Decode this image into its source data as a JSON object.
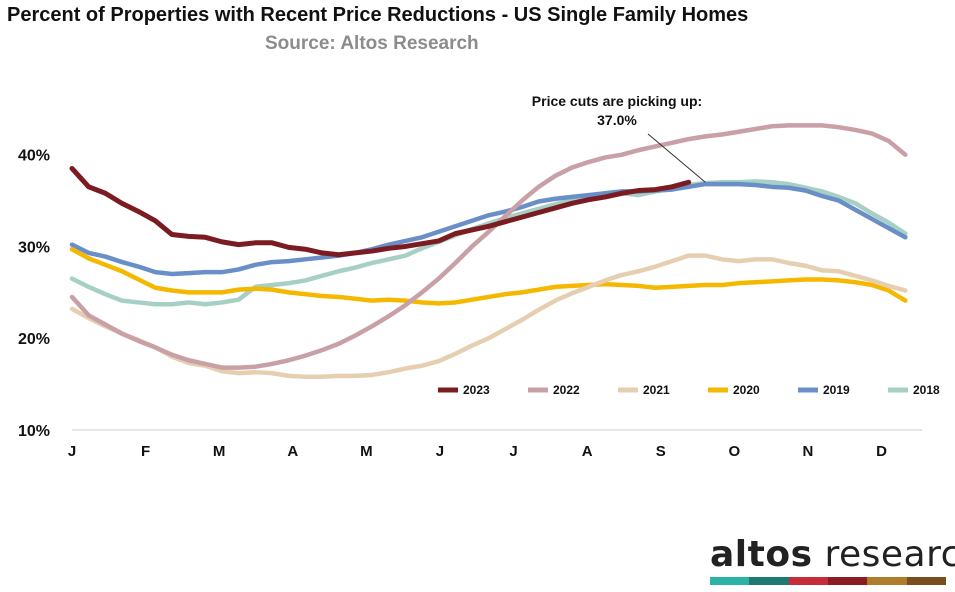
{
  "chart_data": {
    "type": "line",
    "title": "Percent of Properties with Recent Price Reductions - US Single Family Homes",
    "subtitle": "Source: Altos Research",
    "xlabel": "",
    "ylabel": "",
    "x_ticks": [
      "J",
      "F",
      "M",
      "A",
      "M",
      "J",
      "J",
      "A",
      "S",
      "O",
      "N",
      "D"
    ],
    "y_ticks": [
      "10%",
      "20%",
      "30%",
      "40%"
    ],
    "ylim": [
      10,
      44
    ],
    "xlim": [
      0,
      51
    ],
    "x_unit": "week of year",
    "grid": false,
    "legend_position": "bottom-right",
    "annotation": {
      "line1": "Price cuts are picking up:",
      "line2": "37.0%",
      "x": 38,
      "y": 37.0
    },
    "series": [
      {
        "name": "2023",
        "color": "#7b1c22",
        "values": [
          38.5,
          36.5,
          35.8,
          34.7,
          33.8,
          32.8,
          31.3,
          31.1,
          31.0,
          30.5,
          30.2,
          30.4,
          30.4,
          29.9,
          29.7,
          29.3,
          29.1,
          29.3,
          29.5,
          29.8,
          30.0,
          30.3,
          30.6,
          31.4,
          31.8,
          32.2,
          32.7,
          33.2,
          33.7,
          34.2,
          34.7,
          35.1,
          35.4,
          35.8,
          36.1,
          36.2,
          36.5,
          37.0
        ]
      },
      {
        "name": "2022",
        "color": "#c9a0a6",
        "values": [
          24.5,
          22.5,
          21.5,
          20.5,
          19.7,
          19.0,
          18.2,
          17.6,
          17.2,
          16.8,
          16.8,
          16.9,
          17.2,
          17.6,
          18.1,
          18.7,
          19.4,
          20.3,
          21.3,
          22.4,
          23.6,
          25.0,
          26.5,
          28.2,
          30.0,
          31.6,
          33.3,
          35.0,
          36.5,
          37.7,
          38.6,
          39.2,
          39.7,
          40.0,
          40.5,
          40.9,
          41.3,
          41.7,
          42.0,
          42.2,
          42.5,
          42.8,
          43.1,
          43.2,
          43.2,
          43.2,
          43.0,
          42.7,
          42.3,
          41.5,
          40.0
        ]
      },
      {
        "name": "2021",
        "color": "#e6cfb0",
        "values": [
          23.2,
          22.2,
          21.3,
          20.5,
          19.8,
          19.0,
          18.0,
          17.3,
          17.0,
          16.4,
          16.2,
          16.3,
          16.2,
          15.9,
          15.8,
          15.8,
          15.9,
          15.9,
          16.0,
          16.3,
          16.7,
          17.0,
          17.5,
          18.3,
          19.2,
          20.0,
          21.0,
          22.0,
          23.1,
          24.1,
          24.9,
          25.6,
          26.3,
          26.9,
          27.3,
          27.8,
          28.4,
          29.0,
          29.0,
          28.6,
          28.4,
          28.6,
          28.6,
          28.2,
          27.9,
          27.4,
          27.3,
          26.8,
          26.3,
          25.7,
          25.2
        ]
      },
      {
        "name": "2020",
        "color": "#f5b800",
        "values": [
          29.7,
          28.7,
          28.0,
          27.3,
          26.4,
          25.5,
          25.2,
          25.0,
          25.0,
          25.0,
          25.3,
          25.4,
          25.3,
          25.0,
          24.8,
          24.6,
          24.5,
          24.3,
          24.1,
          24.2,
          24.1,
          23.9,
          23.8,
          23.9,
          24.2,
          24.5,
          24.8,
          25.0,
          25.3,
          25.6,
          25.7,
          25.8,
          25.9,
          25.8,
          25.7,
          25.5,
          25.6,
          25.7,
          25.8,
          25.8,
          26.0,
          26.1,
          26.2,
          26.3,
          26.4,
          26.4,
          26.3,
          26.1,
          25.8,
          25.2,
          24.1
        ]
      },
      {
        "name": "2019",
        "color": "#6a8fc8",
        "values": [
          30.2,
          29.3,
          28.9,
          28.3,
          27.8,
          27.2,
          27.0,
          27.1,
          27.2,
          27.2,
          27.5,
          28.0,
          28.3,
          28.4,
          28.6,
          28.8,
          29.0,
          29.3,
          29.7,
          30.2,
          30.6,
          31.0,
          31.6,
          32.2,
          32.8,
          33.4,
          33.8,
          34.3,
          34.9,
          35.2,
          35.4,
          35.6,
          35.8,
          36.0,
          36.0,
          36.1,
          36.2,
          36.5,
          36.8,
          36.8,
          36.8,
          36.7,
          36.5,
          36.4,
          36.1,
          35.5,
          35.0,
          34.0,
          33.0,
          32.0,
          31.0
        ]
      },
      {
        "name": "2018",
        "color": "#a6d0c5",
        "values": [
          26.5,
          25.6,
          24.8,
          24.1,
          23.9,
          23.7,
          23.7,
          23.9,
          23.7,
          23.9,
          24.2,
          25.6,
          25.8,
          26.0,
          26.3,
          26.8,
          27.3,
          27.7,
          28.2,
          28.6,
          29.0,
          29.8,
          30.5,
          31.2,
          31.9,
          32.5,
          33.1,
          33.6,
          34.1,
          34.6,
          35.0,
          35.3,
          35.6,
          35.8,
          35.6,
          36.0,
          36.3,
          36.7,
          36.9,
          37.0,
          37.0,
          37.1,
          37.0,
          36.8,
          36.4,
          36.0,
          35.4,
          34.7,
          33.6,
          32.6,
          31.4
        ]
      }
    ]
  },
  "logo": {
    "text_bold": "altos",
    "text_regular": " research",
    "bar_colors": [
      "#2bb3a5",
      "#1e7a72",
      "#c72c3a",
      "#8a1c24",
      "#b07d2a",
      "#7a4e1e"
    ]
  }
}
